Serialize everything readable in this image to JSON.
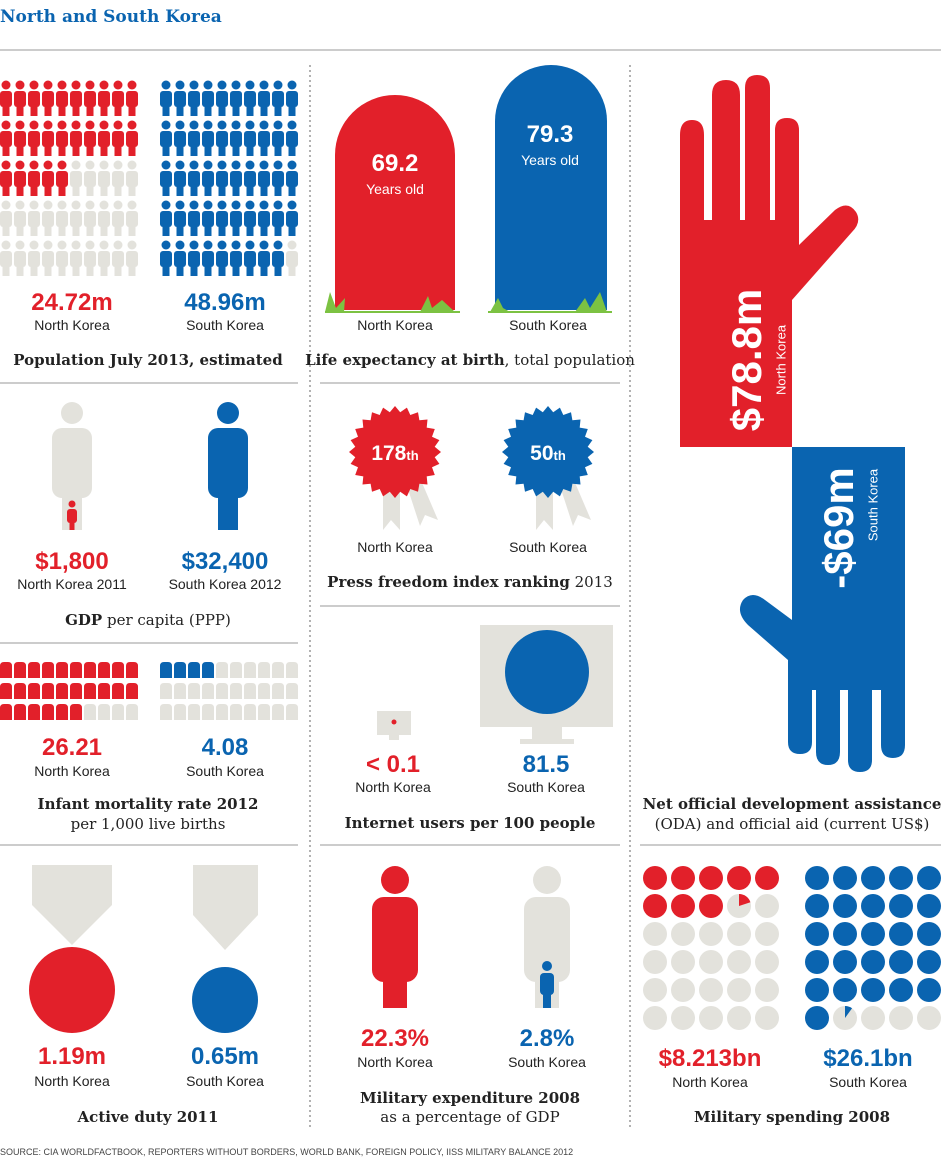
{
  "title": "North and South Korea",
  "population": {
    "north_value": "24.72m",
    "north_label": "North Korea",
    "south_value": "48.96m",
    "south_label": "South Korea",
    "title": "Population July 2013, estimated"
  },
  "life_expectancy": {
    "north_value": "69.2",
    "north_unit": "Years old",
    "south_value": "79.3",
    "south_unit": "Years old",
    "north_label": "North Korea",
    "south_label": "South Korea",
    "title_bold": "Life expectancy at birth",
    "title_rest": ", total population"
  },
  "gdp": {
    "north_value": "$1,800",
    "north_label": "North Korea 2011",
    "south_value": "$32,400",
    "south_label": "South Korea 2012",
    "title_bold": "GDP",
    "title_rest": " per capita (PPP)"
  },
  "press_freedom": {
    "north_value": "178",
    "north_suffix": "th",
    "south_value": "50",
    "south_suffix": "th",
    "north_label": "North Korea",
    "south_label": "South Korea",
    "title_bold": "Press freedom index ranking",
    "title_rest": " 2013"
  },
  "oda": {
    "north_value": "$78.8m",
    "north_label": "North Korea",
    "south_value": "-$69m",
    "south_label": "South Korea",
    "title_line1": "Net official development assistance",
    "title_line2": "(ODA) and official aid (current US$)"
  },
  "infant_mortality": {
    "north_value": "26.21",
    "north_label": "North Korea",
    "south_value": "4.08",
    "south_label": "South Korea",
    "title_line1": "Infant mortality rate 2012",
    "title_line2": "per 1,000 live births"
  },
  "internet": {
    "north_value": "< 0.1",
    "north_label": "North Korea",
    "south_value": "81.5",
    "south_label": "South Korea",
    "title": "Internet users per 100 people"
  },
  "active_duty": {
    "north_value": "1.19m",
    "north_label": "North Korea",
    "south_value": "0.65m",
    "south_label": "South Korea",
    "title": "Active duty 2011"
  },
  "military_expenditure": {
    "north_value": "22.3%",
    "north_label": "North Korea",
    "south_value": "2.8%",
    "south_label": "South Korea",
    "title_line1": "Military expenditure 2008",
    "title_line2": "as a percentage of GDP"
  },
  "military_spending": {
    "north_value": "$8.213bn",
    "north_label": "North Korea",
    "south_value": "$26.1bn",
    "south_label": "South Korea",
    "title": "Military spending 2008"
  },
  "source": "SOURCE: CIA WORLDFACTBOOK, REPORTERS WITHOUT BORDERS, WORLD BANK, FOREIGN POLICY, IISS MILITARY BALANCE 2012"
}
